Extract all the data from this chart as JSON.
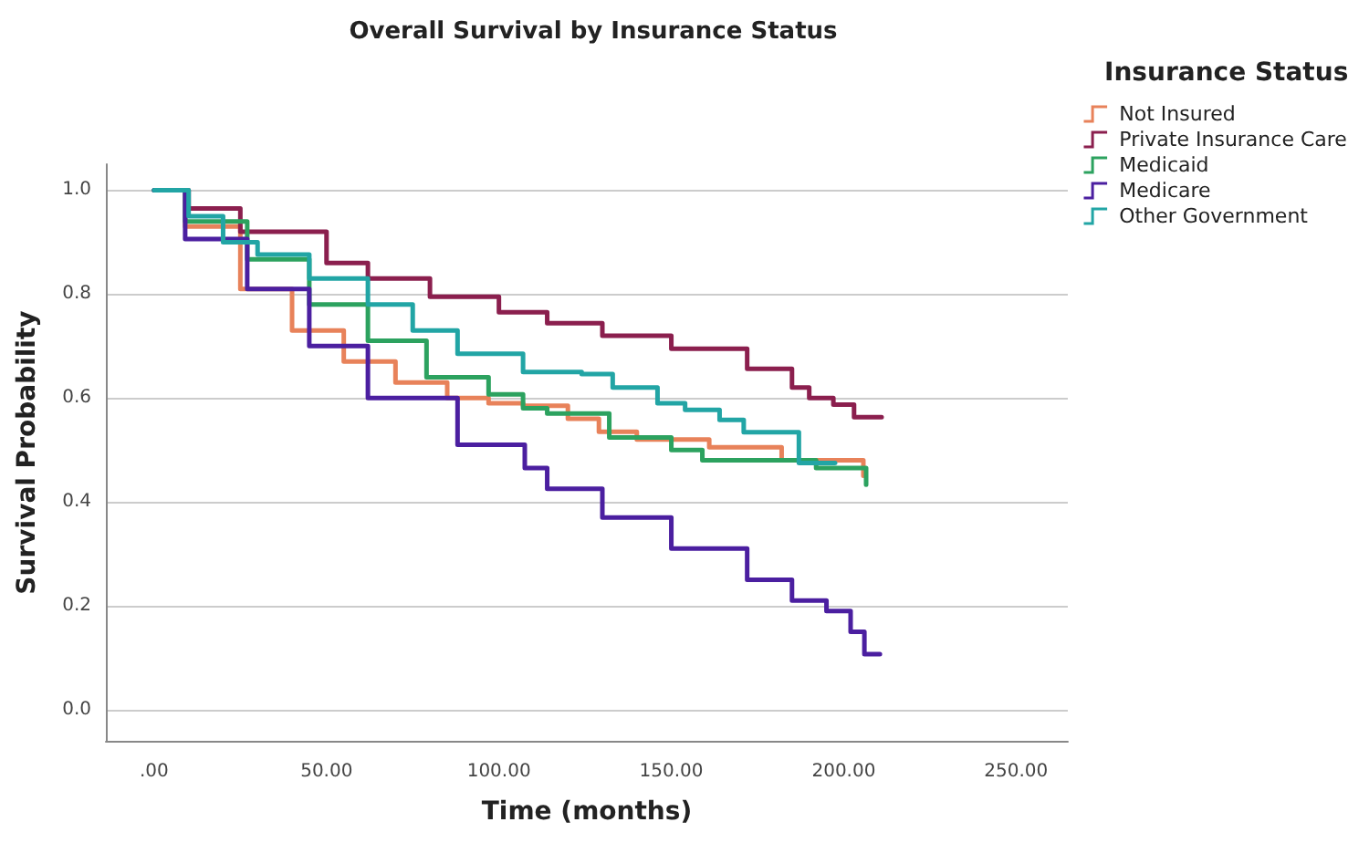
{
  "chart_data": {
    "type": "step",
    "title": "Overall Survival by Insurance Status",
    "xlabel": "Time (months)",
    "ylabel": "Survival Probability",
    "legend_title": "Insurance Status",
    "xlim": [
      -14,
      265
    ],
    "ylim": [
      -0.06,
      1.05
    ],
    "xticks": [
      {
        "value": 0,
        "label": ".00"
      },
      {
        "value": 50,
        "label": "50.00"
      },
      {
        "value": 100,
        "label": "100.00"
      },
      {
        "value": 150,
        "label": "150.00"
      },
      {
        "value": 200,
        "label": "200.00"
      },
      {
        "value": 250,
        "label": "250.00"
      }
    ],
    "yticks": [
      {
        "value": 0,
        "label": "0.0"
      },
      {
        "value": 0.2,
        "label": "0.2"
      },
      {
        "value": 0.4,
        "label": "0.4"
      },
      {
        "value": 0.6,
        "label": "0.6"
      },
      {
        "value": 0.8,
        "label": "0.8"
      },
      {
        "value": 1,
        "label": "1.0"
      }
    ],
    "grid": "y",
    "legend": "top right",
    "marker": "none",
    "line_style": "solid",
    "series": [
      {
        "name": "Not Insured",
        "color": "#e8825a",
        "x": [
          0,
          9,
          25,
          40,
          55,
          70,
          85,
          97,
          107,
          120,
          129,
          140,
          161,
          182,
          205.7
        ],
        "values": [
          1.0,
          0.93,
          0.81,
          0.73,
          0.67,
          0.63,
          0.6,
          0.59,
          0.585,
          0.56,
          0.535,
          0.52,
          0.505,
          0.48,
          0.45
        ]
      },
      {
        "name": "Private Insurance Care",
        "color": "#8b1f4e",
        "x": [
          0,
          10,
          25,
          50,
          62,
          80,
          100,
          114,
          130,
          150,
          172,
          185,
          190,
          197,
          203,
          211
        ],
        "values": [
          1.0,
          0.965,
          0.92,
          0.86,
          0.83,
          0.795,
          0.765,
          0.744,
          0.72,
          0.695,
          0.656,
          0.62,
          0.6,
          0.587,
          0.563,
          0.563
        ]
      },
      {
        "name": "Medicaid",
        "color": "#2ca25f",
        "x": [
          0,
          9,
          27,
          45,
          62,
          79,
          97,
          107,
          114,
          132,
          150,
          159,
          182,
          192,
          206.5
        ],
        "values": [
          1.0,
          0.94,
          0.867,
          0.78,
          0.71,
          0.64,
          0.607,
          0.58,
          0.57,
          0.524,
          0.5,
          0.48,
          0.48,
          0.465,
          0.433
        ]
      },
      {
        "name": "Medicare",
        "color": "#4b1fa0",
        "x": [
          0,
          9,
          27,
          45,
          62,
          88,
          107.5,
          114,
          130,
          150,
          172,
          185,
          195,
          202,
          206,
          210.5
        ],
        "values": [
          1.0,
          0.906,
          0.81,
          0.7,
          0.6,
          0.51,
          0.465,
          0.425,
          0.37,
          0.31,
          0.25,
          0.21,
          0.19,
          0.15,
          0.107,
          0.107
        ]
      },
      {
        "name": "Other Government",
        "color": "#22a5a5",
        "x": [
          0,
          10,
          20,
          30,
          45,
          62,
          75,
          88,
          107,
          124,
          133,
          146,
          154,
          164,
          171,
          187,
          197.5
        ],
        "values": [
          1.0,
          0.95,
          0.9,
          0.876,
          0.83,
          0.78,
          0.73,
          0.685,
          0.65,
          0.646,
          0.62,
          0.59,
          0.577,
          0.558,
          0.534,
          0.475,
          0.475
        ]
      }
    ]
  }
}
